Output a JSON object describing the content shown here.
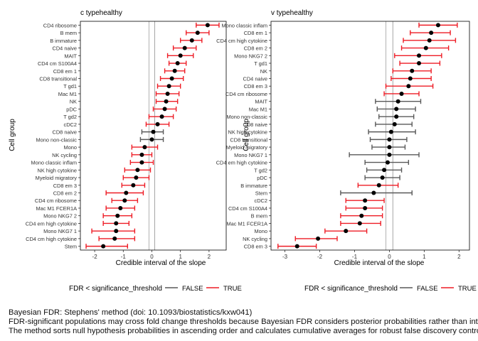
{
  "colors": {
    "true": "#ee1c25",
    "false": "#595959",
    "point": "#000000",
    "panel_border": "#000000",
    "vline_center": "#b3b3b3",
    "vline_zero": "#a6a6a6"
  },
  "legend": {
    "title": "FDR < significance_threshold",
    "false_label": "FALSE",
    "true_label": "TRUE"
  },
  "captions": [
    "Bayesian FDR: Stephens' method (doi: 10.1093/biostatistics/kxw041)",
    "FDR-significant populations may cross fold change thresholds because Bayesian FDR considers posterior probabilities rather than intervals.",
    "The method sorts null hypothesis probabilities in ascending order and calculates cumulative averages for robust false discovery control."
  ],
  "chart_data": [
    {
      "type": "forest",
      "title": "c typehealthy",
      "xlabel": "Credible interval of the slope",
      "ylabel": "Cell group",
      "xlim": [
        -2.5,
        2.6
      ],
      "xticks": [
        -2,
        -1,
        0,
        1,
        2
      ],
      "vlines": [
        -0.1,
        0.1
      ],
      "grid": false,
      "rows": [
        {
          "label": "CD4 ribosome",
          "est": 1.95,
          "lo": 1.55,
          "hi": 2.35,
          "sig": true
        },
        {
          "label": "B mem",
          "est": 1.6,
          "lo": 1.2,
          "hi": 2.0,
          "sig": true
        },
        {
          "label": "B immature",
          "est": 1.4,
          "lo": 1.0,
          "hi": 1.75,
          "sig": true
        },
        {
          "label": "CD4 naive",
          "est": 1.15,
          "lo": 0.75,
          "hi": 1.55,
          "sig": true
        },
        {
          "label": "MAIT",
          "est": 1.0,
          "lo": 0.55,
          "hi": 1.45,
          "sig": true
        },
        {
          "label": "CD4 cm S100A4",
          "est": 0.9,
          "lo": 0.6,
          "hi": 1.2,
          "sig": true
        },
        {
          "label": "CD8 em 1",
          "est": 0.8,
          "lo": 0.45,
          "hi": 1.15,
          "sig": true
        },
        {
          "label": "CD8 transitional",
          "est": 0.7,
          "lo": 0.3,
          "hi": 1.1,
          "sig": true
        },
        {
          "label": "T gd1",
          "est": 0.6,
          "lo": 0.2,
          "hi": 1.0,
          "sig": true
        },
        {
          "label": "Mac M1",
          "est": 0.55,
          "lo": 0.15,
          "hi": 0.95,
          "sig": true
        },
        {
          "label": "NK",
          "est": 0.5,
          "lo": 0.15,
          "hi": 0.9,
          "sig": true
        },
        {
          "label": "pDC",
          "est": 0.45,
          "lo": 0.05,
          "hi": 0.85,
          "sig": true
        },
        {
          "label": "T gd2",
          "est": 0.35,
          "lo": -0.1,
          "hi": 0.75,
          "sig": true
        },
        {
          "label": "cDC2",
          "est": 0.2,
          "lo": -0.2,
          "hi": 0.6,
          "sig": true
        },
        {
          "label": "CD8 naive",
          "est": 0.05,
          "lo": -0.35,
          "hi": 0.4,
          "sig": false
        },
        {
          "label": "Mono non-classic",
          "est": 0.0,
          "lo": -0.4,
          "hi": 0.4,
          "sig": false
        },
        {
          "label": "Mono",
          "est": -0.25,
          "lo": -0.7,
          "hi": 0.2,
          "sig": true
        },
        {
          "label": "NK cycling",
          "est": -0.35,
          "lo": -0.7,
          "hi": 0.0,
          "sig": true
        },
        {
          "label": "Mono classic inflam",
          "est": -0.35,
          "lo": -0.75,
          "hi": 0.05,
          "sig": true
        },
        {
          "label": "NK high cytokine",
          "est": -0.5,
          "lo": -0.95,
          "hi": -0.05,
          "sig": true
        },
        {
          "label": "Myeloid migratory",
          "est": -0.55,
          "lo": -1.0,
          "hi": -0.1,
          "sig": true
        },
        {
          "label": "CD8 em 3",
          "est": -0.65,
          "lo": -1.05,
          "hi": -0.25,
          "sig": true
        },
        {
          "label": "CD8 em 2",
          "est": -0.9,
          "lo": -1.6,
          "hi": -0.3,
          "sig": true
        },
        {
          "label": "CD4 cm ribosome",
          "est": -0.95,
          "lo": -1.4,
          "hi": -0.5,
          "sig": true
        },
        {
          "label": "Mac M1 FCER1A",
          "est": -1.1,
          "lo": -1.6,
          "hi": -0.6,
          "sig": true
        },
        {
          "label": "Mono NKG7 2",
          "est": -1.2,
          "lo": -1.7,
          "hi": -0.7,
          "sig": true
        },
        {
          "label": "CD4 em high cytokine",
          "est": -1.25,
          "lo": -1.7,
          "hi": -0.8,
          "sig": true
        },
        {
          "label": "Mono NKG7 1",
          "est": -1.25,
          "lo": -2.1,
          "hi": -0.6,
          "sig": true
        },
        {
          "label": "CD4 cm high cytokine",
          "est": -1.3,
          "lo": -1.85,
          "hi": -0.6,
          "sig": true
        },
        {
          "label": "Stem",
          "est": -1.7,
          "lo": -2.3,
          "hi": -0.85,
          "sig": true
        }
      ]
    },
    {
      "type": "forest",
      "title": "v typehealthy",
      "xlabel": "Credible interval of the slope",
      "ylabel": "Cell group",
      "xlim": [
        -3.4,
        2.3
      ],
      "xticks": [
        -3,
        -2,
        -1,
        0,
        1,
        2
      ],
      "vlines": [
        -0.1,
        0.1
      ],
      "grid": false,
      "rows": [
        {
          "label": "Mono classic inflam",
          "est": 1.4,
          "lo": 0.85,
          "hi": 1.95,
          "sig": true
        },
        {
          "label": "CD8 em 1",
          "est": 1.2,
          "lo": 0.6,
          "hi": 1.75,
          "sig": true
        },
        {
          "label": "CD4 cm high cytokine",
          "est": 1.15,
          "lo": 0.4,
          "hi": 1.9,
          "sig": true
        },
        {
          "label": "CD8 em 2",
          "est": 1.05,
          "lo": 0.35,
          "hi": 1.7,
          "sig": true
        },
        {
          "label": "Mono NKG7 2",
          "est": 0.85,
          "lo": 0.15,
          "hi": 1.5,
          "sig": true
        },
        {
          "label": "T gd1",
          "est": 0.85,
          "lo": 0.3,
          "hi": 1.45,
          "sig": true
        },
        {
          "label": "NK",
          "est": 0.65,
          "lo": 0.1,
          "hi": 1.2,
          "sig": true
        },
        {
          "label": "CD4 naive",
          "est": 0.6,
          "lo": 0.05,
          "hi": 1.2,
          "sig": true
        },
        {
          "label": "CD8 em 3",
          "est": 0.55,
          "lo": -0.1,
          "hi": 1.25,
          "sig": true
        },
        {
          "label": "CD4 cm ribosome",
          "est": 0.35,
          "lo": -0.15,
          "hi": 0.85,
          "sig": true
        },
        {
          "label": "MAIT",
          "est": 0.25,
          "lo": -0.4,
          "hi": 0.9,
          "sig": false
        },
        {
          "label": "Mac M1",
          "est": 0.2,
          "lo": -0.35,
          "hi": 0.75,
          "sig": false
        },
        {
          "label": "Mono non-classic",
          "est": 0.2,
          "lo": -0.3,
          "hi": 0.7,
          "sig": false
        },
        {
          "label": "CD8 naive",
          "est": 0.15,
          "lo": -0.4,
          "hi": 0.65,
          "sig": false
        },
        {
          "label": "NK high cytokine",
          "est": 0.05,
          "lo": -0.6,
          "hi": 0.75,
          "sig": false
        },
        {
          "label": "CD8 transitional",
          "est": 0.0,
          "lo": -0.55,
          "hi": 0.5,
          "sig": false
        },
        {
          "label": "Myeloid migratory",
          "est": 0.0,
          "lo": -0.5,
          "hi": 0.45,
          "sig": false
        },
        {
          "label": "Mono NKG7 1",
          "est": 0.0,
          "lo": -1.15,
          "hi": 0.85,
          "sig": false
        },
        {
          "label": "CD4 em high cytokine",
          "est": -0.05,
          "lo": -0.7,
          "hi": 0.55,
          "sig": false
        },
        {
          "label": "T gd2",
          "est": -0.15,
          "lo": -0.65,
          "hi": 0.35,
          "sig": false
        },
        {
          "label": "pDC",
          "est": -0.2,
          "lo": -0.7,
          "hi": 0.3,
          "sig": false
        },
        {
          "label": "B immature",
          "est": -0.3,
          "lo": -0.9,
          "hi": 0.25,
          "sig": true
        },
        {
          "label": "Stem",
          "est": -0.45,
          "lo": -1.4,
          "hi": 0.65,
          "sig": false
        },
        {
          "label": "cDC2",
          "est": -0.7,
          "lo": -1.25,
          "hi": -0.15,
          "sig": true
        },
        {
          "label": "CD4 cm S100A4",
          "est": -0.7,
          "lo": -1.25,
          "hi": -0.2,
          "sig": true
        },
        {
          "label": "B mem",
          "est": -0.8,
          "lo": -1.4,
          "hi": -0.2,
          "sig": true
        },
        {
          "label": "Mac M1 FCER1A",
          "est": -0.85,
          "lo": -1.4,
          "hi": -0.25,
          "sig": true
        },
        {
          "label": "Mono",
          "est": -1.25,
          "lo": -1.85,
          "hi": -0.65,
          "sig": true
        },
        {
          "label": "NK cycling",
          "est": -2.05,
          "lo": -2.7,
          "hi": -1.5,
          "sig": true
        },
        {
          "label": "CD8 em 3",
          "est": -2.65,
          "lo": -3.2,
          "hi": -2.1,
          "sig": true
        }
      ]
    }
  ]
}
